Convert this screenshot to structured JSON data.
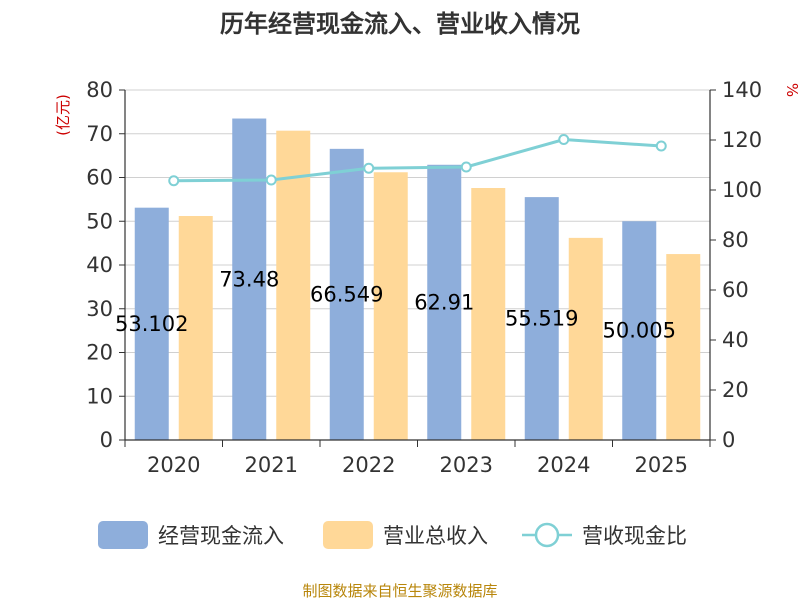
{
  "chart_data": {
    "type": "bar",
    "title": "历年经营现金流入、营业收入情况",
    "categories": [
      "2020",
      "2021",
      "2022",
      "2023",
      "2024",
      "2025"
    ],
    "left_axis": {
      "unit": "(亿元)",
      "min": 0,
      "max": 80,
      "step": 10
    },
    "right_axis": {
      "unit": "%",
      "min": 0,
      "max": 140,
      "step": 20
    },
    "grid": true,
    "series": [
      {
        "name": "经营现金流入",
        "type": "bar",
        "axis": "left",
        "color": "#8eaedb",
        "values": [
          53.102,
          73.48,
          66.549,
          62.91,
          55.519,
          50.005
        ],
        "labels": [
          "53.102",
          "73.48",
          "66.549",
          "62.91",
          "55.519",
          "50.005"
        ]
      },
      {
        "name": "营业总收入",
        "type": "bar",
        "axis": "left",
        "color": "#ffd898",
        "values": [
          51.2,
          70.7,
          61.2,
          57.6,
          46.2,
          42.5
        ]
      },
      {
        "name": "营收现金比",
        "type": "line",
        "axis": "right",
        "color": "#7fd0d5",
        "values": [
          103.7,
          104.0,
          108.7,
          109.2,
          120.2,
          117.6
        ]
      }
    ],
    "legend_position": "bottom",
    "source": "制图数据来自恒生聚源数据库"
  }
}
